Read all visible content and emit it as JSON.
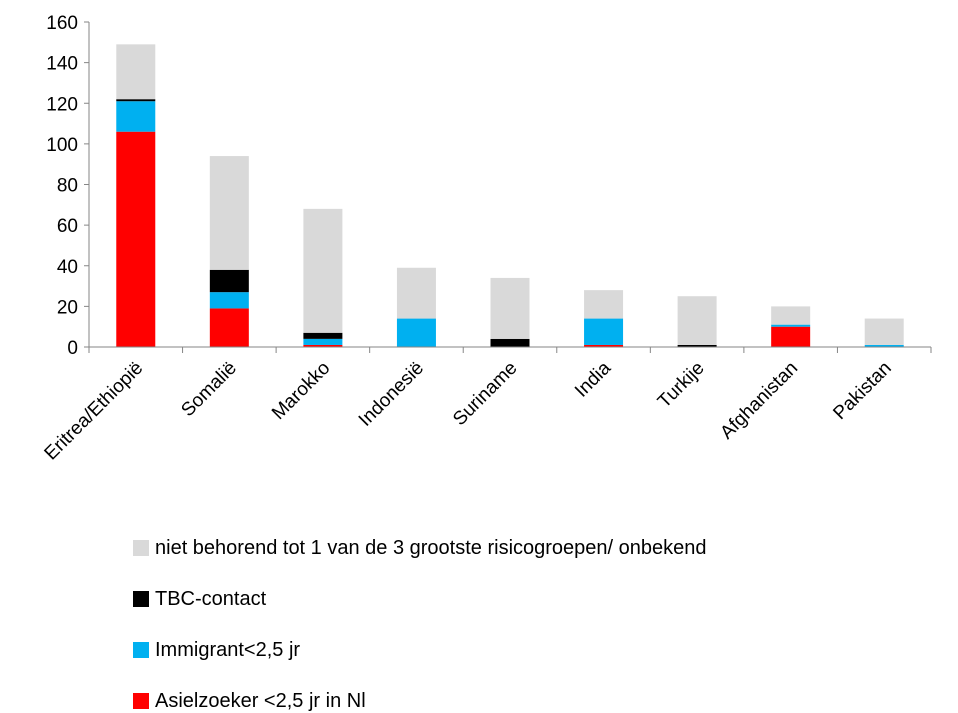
{
  "chart_data": {
    "type": "bar",
    "stacked": true,
    "categories": [
      "Eritrea/Ethiopië",
      "Somalië",
      "Marokko",
      "Indonesië",
      "Suriname",
      "India",
      "Turkije",
      "Afghanistan",
      "Pakistan"
    ],
    "series": [
      {
        "name": "Asielzoeker <2,5 jr in Nl",
        "color": "#ff0000",
        "values": [
          106,
          19,
          1,
          0,
          0,
          1,
          0,
          10,
          0
        ]
      },
      {
        "name": "Immigrant<2,5 jr",
        "color": "#00b0f0",
        "values": [
          15,
          8,
          3,
          14,
          0,
          13,
          0,
          1,
          1
        ]
      },
      {
        "name": "TBC-contact",
        "color": "#000000",
        "values": [
          1,
          11,
          3,
          0,
          4,
          0,
          1,
          0,
          0
        ]
      },
      {
        "name": "niet behorend tot 1 van de 3 grootste risicogroepen/ onbekend",
        "color": "#d9d9d9",
        "values": [
          27,
          56,
          61,
          25,
          30,
          14,
          24,
          9,
          13
        ]
      }
    ],
    "ylim": [
      0,
      160
    ],
    "yticks": [
      0,
      20,
      40,
      60,
      80,
      100,
      120,
      140,
      160
    ],
    "grid": false,
    "legend_position": "bottom",
    "title": "",
    "xlabel": "",
    "ylabel": ""
  }
}
